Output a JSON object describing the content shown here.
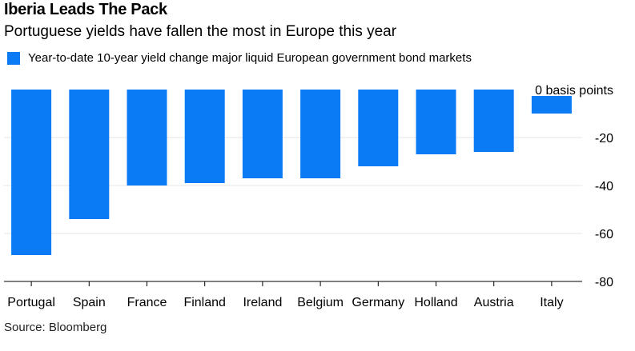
{
  "header": {
    "title": "Iberia Leads The Pack",
    "subtitle": "Portuguese yields have fallen the most in Europe this year"
  },
  "footer": {
    "source": "Source: Bloomberg"
  },
  "colors": {
    "bar": "#0a7bf5",
    "grid": "#e6e6e6",
    "axis": "#000000"
  },
  "chart_data": {
    "type": "bar",
    "title": "Iberia Leads The Pack",
    "subtitle": "Portuguese yields have fallen the most in Europe this year",
    "categories": [
      "Portugal",
      "Spain",
      "France",
      "Finland",
      "Ireland",
      "Belgium",
      "Germany",
      "Holland",
      "Austria",
      "Italy"
    ],
    "series": [
      {
        "name": "Year-to-date 10-year yield change major liquid European government bond markets",
        "values": [
          -69,
          -54,
          -40,
          -39,
          -37,
          -37,
          -32,
          -27,
          -26,
          -10
        ]
      }
    ],
    "ylim": [
      -80,
      0
    ],
    "yticks": [
      0,
      -20,
      -40,
      -60,
      -80
    ],
    "ytick_labels": [
      "0 basis points",
      "-20",
      "-40",
      "-60",
      "-80"
    ],
    "y_axis_position": "right",
    "grid": true,
    "legend_position": "top-left",
    "xlabel": "",
    "ylabel": ""
  }
}
